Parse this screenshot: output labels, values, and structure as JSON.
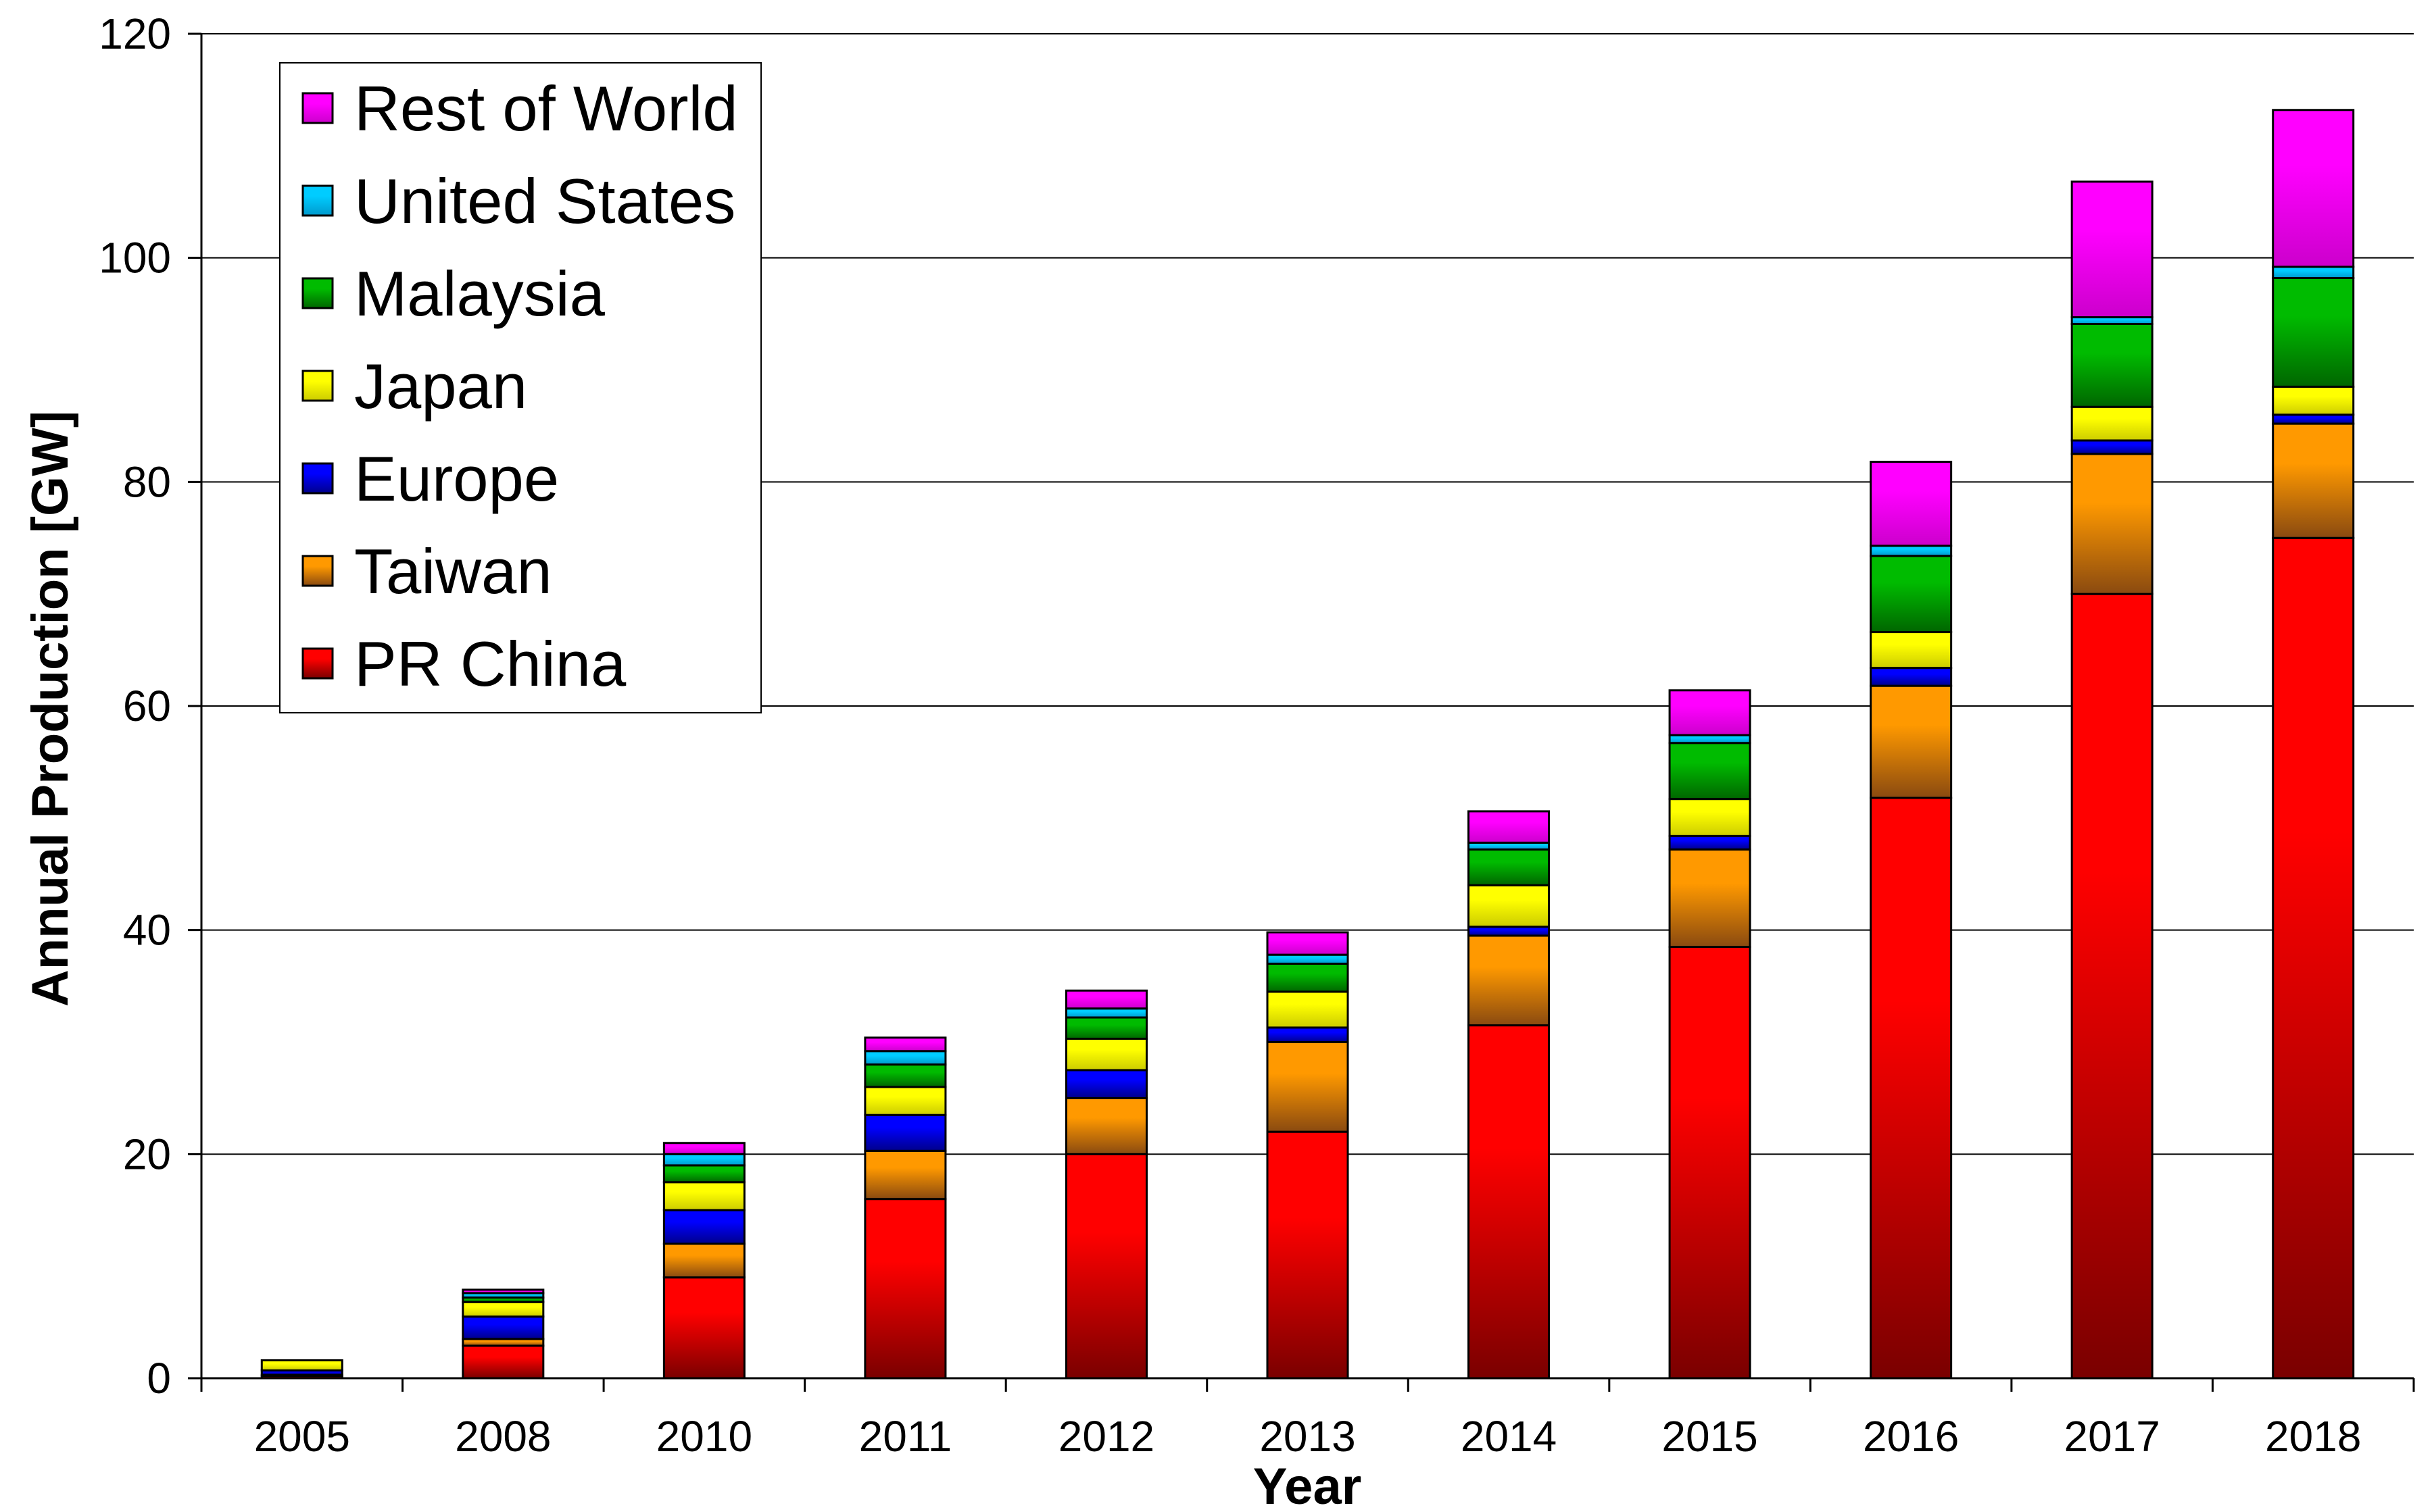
{
  "chart_data": {
    "type": "bar",
    "stacked": true,
    "title": "",
    "xlabel": "Year",
    "ylabel": "Annual Production [GW]",
    "ylim": [
      0,
      120
    ],
    "yticks": [
      0,
      20,
      40,
      60,
      80,
      100,
      120
    ],
    "grid": "horizontal",
    "legend_position": "top-left",
    "categories": [
      "2005",
      "2008",
      "2010",
      "2011",
      "2012",
      "2013",
      "2014",
      "2015",
      "2016",
      "2017",
      "2018"
    ],
    "series": [
      {
        "name": "PR China",
        "color": "#ff0000",
        "color_dark": "#7a0000",
        "values": [
          0.2,
          2.9,
          9.0,
          16.0,
          20.0,
          22.0,
          31.5,
          38.5,
          51.8,
          70.0,
          75.0
        ]
      },
      {
        "name": "Taiwan",
        "color": "#ff9900",
        "color_dark": "#8a4a10",
        "values": [
          0.1,
          0.6,
          3.0,
          4.3,
          5.0,
          8.0,
          8.0,
          8.7,
          10.0,
          12.5,
          10.2
        ]
      },
      {
        "name": "Europe",
        "color": "#0000ff",
        "color_dark": "#00008b",
        "values": [
          0.4,
          2.0,
          3.0,
          3.2,
          2.5,
          1.3,
          0.8,
          1.2,
          1.6,
          1.2,
          0.8
        ]
      },
      {
        "name": "Japan",
        "color": "#ffff00",
        "color_dark": "#cccc00",
        "values": [
          0.9,
          1.3,
          2.5,
          2.5,
          2.8,
          3.2,
          3.7,
          3.3,
          3.2,
          3.0,
          2.5
        ]
      },
      {
        "name": "Malaysia",
        "color": "#00bb00",
        "color_dark": "#006600",
        "values": [
          0.0,
          0.4,
          1.5,
          2.0,
          1.9,
          2.5,
          3.2,
          5.0,
          6.8,
          7.4,
          9.7
        ]
      },
      {
        "name": "United States",
        "color": "#00ccff",
        "color_dark": "#0099cc",
        "values": [
          0.0,
          0.4,
          1.0,
          1.2,
          0.8,
          0.8,
          0.6,
          0.7,
          0.9,
          0.6,
          1.0
        ]
      },
      {
        "name": "Rest of World",
        "color": "#ff00ff",
        "color_dark": "#cc00cc",
        "values": [
          0.0,
          0.3,
          1.0,
          1.2,
          1.6,
          2.0,
          2.8,
          4.0,
          7.5,
          12.1,
          14.0
        ]
      }
    ]
  }
}
